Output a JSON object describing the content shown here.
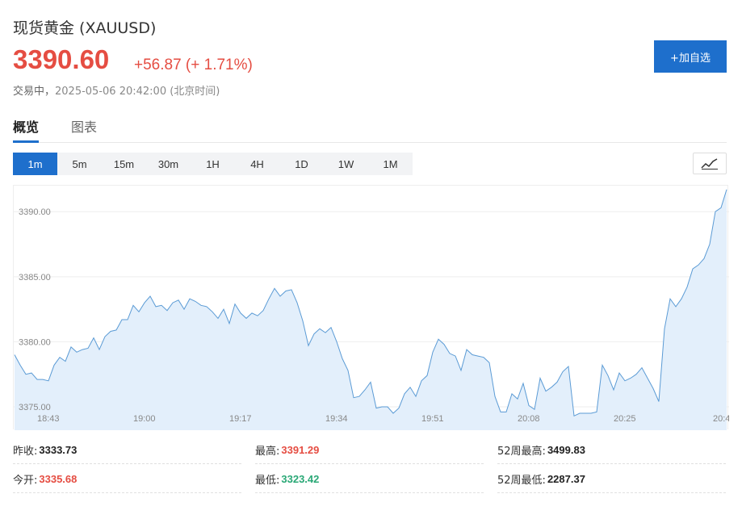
{
  "header": {
    "title": "现货黄金  (XAUUSD)",
    "price": "3390.60",
    "change": "+56.87 (+ 1.71%)",
    "status_label": "交易中，",
    "status_time": "2025-05-06 20:42:00 (北京时间)",
    "watch_button": "+加自选"
  },
  "tabs": [
    {
      "label": "概览",
      "active": true
    },
    {
      "label": "图表",
      "active": false
    }
  ],
  "intervals": [
    {
      "label": "1m",
      "active": true
    },
    {
      "label": "5m",
      "active": false
    },
    {
      "label": "15m",
      "active": false
    },
    {
      "label": "30m",
      "active": false
    },
    {
      "label": "1H",
      "active": false
    },
    {
      "label": "4H",
      "active": false
    },
    {
      "label": "1D",
      "active": false
    },
    {
      "label": "1W",
      "active": false
    },
    {
      "label": "1M",
      "active": false
    }
  ],
  "chart_type_icon": "line-chart-icon",
  "colors": {
    "accent": "#1e6fcc",
    "up": "#e54d42",
    "down": "#2aa876",
    "line": "#5b9bd5",
    "area": "#e3effb"
  },
  "chart_data": {
    "type": "area",
    "x_ticks": [
      "18:43",
      "19:00",
      "19:17",
      "19:34",
      "19:51",
      "20:08",
      "20:25",
      "20:4"
    ],
    "y_ticks": [
      "3390.00",
      "3385.00",
      "3380.00",
      "3375.00"
    ],
    "ylim": [
      3373.2,
      3392.0
    ],
    "grid": true,
    "legend": "none",
    "x_start_minute": 0,
    "values": [
      3379.0,
      3378.2,
      3377.5,
      3377.6,
      3377.1,
      3377.1,
      3377.0,
      3378.2,
      3378.8,
      3378.5,
      3379.6,
      3379.2,
      3379.4,
      3379.5,
      3380.3,
      3379.4,
      3380.4,
      3380.8,
      3380.9,
      3381.7,
      3381.7,
      3382.8,
      3382.3,
      3383.0,
      3383.5,
      3382.7,
      3382.8,
      3382.4,
      3383.0,
      3383.2,
      3382.5,
      3383.3,
      3383.1,
      3382.8,
      3382.7,
      3382.3,
      3381.8,
      3382.5,
      3381.4,
      3382.9,
      3382.2,
      3381.8,
      3382.2,
      3382.0,
      3382.4,
      3383.3,
      3384.1,
      3383.5,
      3383.9,
      3384.0,
      3383.0,
      3381.6,
      3379.7,
      3380.6,
      3381.0,
      3380.7,
      3381.1,
      3380.0,
      3378.7,
      3377.8,
      3375.7,
      3375.8,
      3376.3,
      3376.9,
      3374.9,
      3375.0,
      3375.0,
      3374.5,
      3374.9,
      3376.0,
      3376.5,
      3375.8,
      3377.0,
      3377.4,
      3379.2,
      3380.2,
      3379.8,
      3379.1,
      3378.9,
      3377.8,
      3379.4,
      3379.0,
      3378.9,
      3378.8,
      3378.4,
      3375.8,
      3374.6,
      3374.6,
      3376.0,
      3375.6,
      3376.8,
      3375.1,
      3374.8,
      3377.2,
      3376.2,
      3376.5,
      3376.9,
      3377.7,
      3378.1,
      3374.3,
      3374.5,
      3374.5,
      3374.5,
      3374.6,
      3378.2,
      3377.4,
      3376.3,
      3377.6,
      3377.0,
      3377.2,
      3377.5,
      3378.0,
      3377.2,
      3376.4,
      3375.4,
      3381.0,
      3383.3,
      3382.7,
      3383.3,
      3384.2,
      3385.6,
      3385.9,
      3386.4,
      3387.5,
      3390.0,
      3390.3,
      3391.7
    ]
  },
  "stats": [
    {
      "label": "昨收:",
      "value": "3333.73",
      "tone": "neutral"
    },
    {
      "label": "最高:",
      "value": "3391.29",
      "tone": "up"
    },
    {
      "label": "52周最高:",
      "value": "3499.83",
      "tone": "neutral"
    },
    {
      "label": "今开:",
      "value": "3335.68",
      "tone": "up"
    },
    {
      "label": "最低:",
      "value": "3323.42",
      "tone": "down"
    },
    {
      "label": "52周最低:",
      "value": "2287.37",
      "tone": "neutral"
    }
  ]
}
